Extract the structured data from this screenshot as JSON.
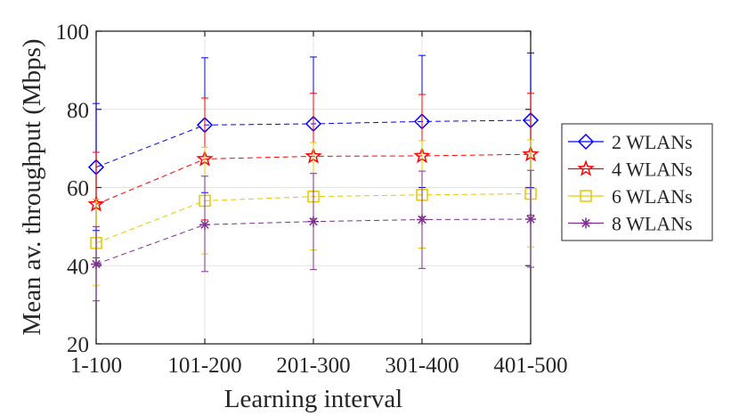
{
  "chart_data": {
    "type": "line",
    "title": "",
    "xlabel": "Learning interval",
    "ylabel": "Mean av. throughput (Mbps)",
    "categories": [
      "1-100",
      "101-200",
      "201-300",
      "301-400",
      "401-500"
    ],
    "ylim": [
      20,
      100
    ],
    "yticks": [
      "20",
      "40",
      "60",
      "80",
      "100"
    ],
    "grid": true,
    "legend_position": "right",
    "series": [
      {
        "name": "2 WLANs",
        "color": "#0000ff",
        "marker": "diamond",
        "values": [
          65.2,
          76.0,
          76.3,
          76.9,
          77.2
        ],
        "lower": [
          49.0,
          58.7,
          59.0,
          60.0,
          60.0
        ],
        "upper": [
          81.5,
          93.2,
          93.4,
          93.8,
          94.4
        ]
      },
      {
        "name": "4 WLANs",
        "color": "#ff0000",
        "marker": "star",
        "values": [
          55.7,
          67.3,
          68.0,
          68.1,
          68.5
        ],
        "lower": [
          42.0,
          51.7,
          52.0,
          52.5,
          52.9
        ],
        "upper": [
          69.0,
          82.9,
          84.1,
          83.8,
          84.1
        ]
      },
      {
        "name": "6 WLANs",
        "color": "#e6c800",
        "marker": "square",
        "values": [
          45.8,
          56.6,
          57.7,
          58.1,
          58.4
        ],
        "lower": [
          35.0,
          43.0,
          44.0,
          44.5,
          44.8
        ],
        "upper": [
          57.0,
          70.3,
          71.5,
          72.0,
          72.2
        ]
      },
      {
        "name": "8 WLANs",
        "color": "#7e2f8e",
        "marker": "asterisk",
        "values": [
          40.4,
          50.5,
          51.3,
          51.8,
          51.9
        ],
        "lower": [
          31.0,
          38.5,
          39.0,
          39.3,
          39.6
        ],
        "upper": [
          50.0,
          62.9,
          63.6,
          64.2,
          64.4
        ]
      }
    ]
  }
}
